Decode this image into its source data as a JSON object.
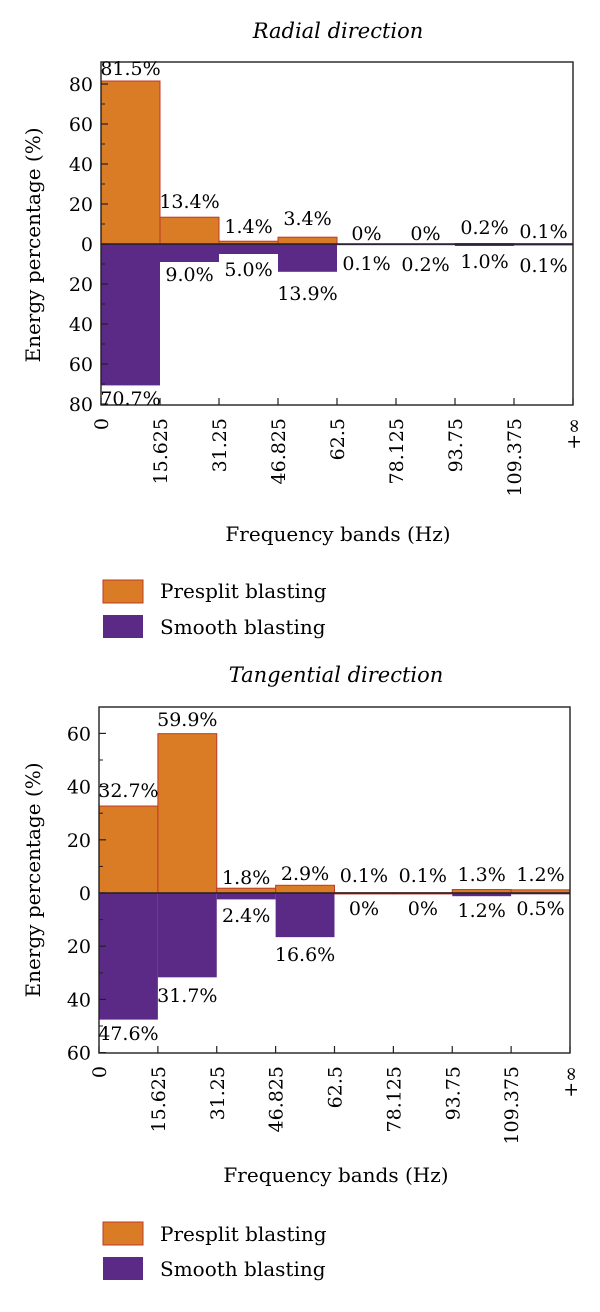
{
  "colors": {
    "presplit": "#d97c25",
    "presplit_edge": "#c0392b",
    "smooth": "#5b2a86",
    "axis": "#231f20"
  },
  "legend": {
    "presplit": "Presplit blasting",
    "smooth": "Smooth blasting"
  },
  "chart_data": [
    {
      "type": "bar",
      "title": "Radial direction",
      "xlabel": "Frequency bands (Hz)",
      "ylabel": "Energy percentage (%)",
      "x_ticks": [
        "0",
        "15.625",
        "31.25",
        "46.825",
        "62.5",
        "78.125",
        "93.75",
        "109.375",
        "+∞"
      ],
      "y_ticks": [
        "80",
        "60",
        "40",
        "20",
        "0",
        "20",
        "40",
        "60",
        "80"
      ],
      "ylim": [
        -80,
        80
      ],
      "grid": false,
      "legend_position": "below",
      "series": [
        {
          "name": "Presplit blasting",
          "values": [
            81.5,
            13.4,
            1.4,
            3.4,
            0,
            0,
            0.2,
            0.1
          ],
          "labels": [
            "81.5%",
            "13.4%",
            "1.4%",
            "3.4%",
            "0%",
            "0%",
            "0.2%",
            "0.1%"
          ]
        },
        {
          "name": "Smooth blasting",
          "values": [
            70.7,
            9.0,
            5.0,
            13.9,
            0.1,
            0.2,
            1.0,
            0.1
          ],
          "labels": [
            "70.7%",
            "9.0%",
            "5.0%",
            "13.9%",
            "0.1%",
            "0.2%",
            "1.0%",
            "0.1%"
          ]
        }
      ]
    },
    {
      "type": "bar",
      "title": "Tangential direction",
      "xlabel": "Frequency bands (Hz)",
      "ylabel": "Energy percentage (%)",
      "x_ticks": [
        "0",
        "15.625",
        "31.25",
        "46.825",
        "62.5",
        "78.125",
        "93.75",
        "109.375",
        "+∞"
      ],
      "y_ticks": [
        "60",
        "40",
        "20",
        "0",
        "20",
        "40",
        "60"
      ],
      "ylim": [
        -60,
        70
      ],
      "grid": false,
      "legend_position": "below",
      "series": [
        {
          "name": "Presplit blasting",
          "values": [
            32.7,
            59.9,
            1.8,
            2.9,
            0.1,
            0.1,
            1.3,
            1.2
          ],
          "labels": [
            "32.7%",
            "59.9%",
            "1.8%",
            "2.9%",
            "0.1%",
            "0.1%",
            "1.3%",
            "1.2%"
          ]
        },
        {
          "name": "Smooth blasting",
          "values": [
            47.6,
            31.7,
            2.4,
            16.6,
            0,
            0,
            1.2,
            0.5
          ],
          "labels": [
            "47.6%",
            "31.7%",
            "2.4%",
            "16.6%",
            "0%",
            "0%",
            "1.2%",
            "0.5%"
          ]
        }
      ]
    }
  ]
}
